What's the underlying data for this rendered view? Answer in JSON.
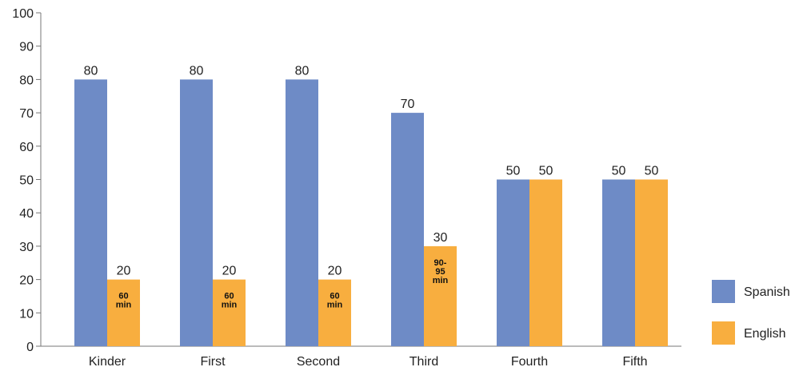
{
  "chart_data": {
    "type": "bar",
    "title": "",
    "xlabel": "",
    "ylabel": "",
    "ylim": [
      0,
      100
    ],
    "yticks": [
      0,
      10,
      20,
      30,
      40,
      50,
      60,
      70,
      80,
      90,
      100
    ],
    "categories": [
      "Kinder",
      "First",
      "Second",
      "Third",
      "Fourth",
      "Fifth"
    ],
    "series": [
      {
        "name": "Spanish",
        "color": "#6e8bc6",
        "values": [
          80,
          80,
          80,
          70,
          50,
          50
        ]
      },
      {
        "name": "English",
        "color": "#f8ae3f",
        "values": [
          20,
          20,
          20,
          30,
          50,
          50
        ]
      }
    ],
    "bar_notes": {
      "series": "English",
      "notes": [
        [
          "60",
          "min"
        ],
        [
          "60",
          "min"
        ],
        [
          "60",
          "min"
        ],
        [
          "90-",
          "95",
          "min"
        ],
        [],
        []
      ]
    },
    "legend_position": "right",
    "grid": false
  }
}
